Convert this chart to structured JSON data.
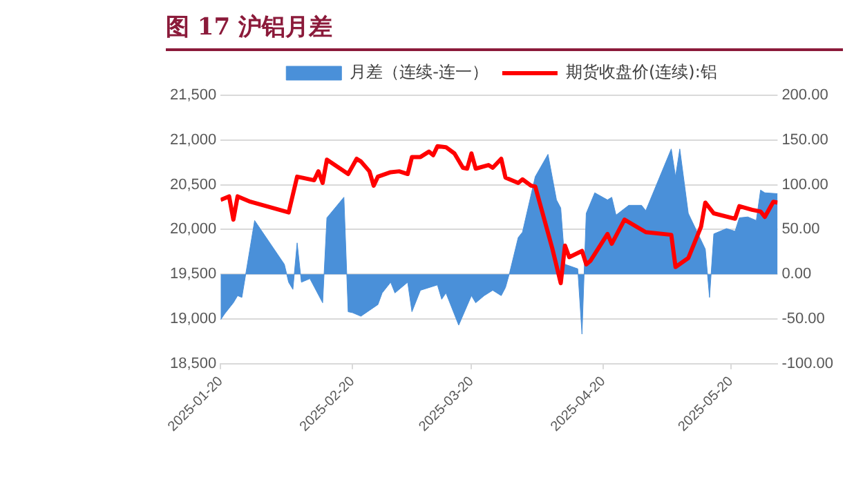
{
  "chart_data": {
    "type": "line",
    "title": "图 17 沪铝月差",
    "legend": "top",
    "grid": "y",
    "marker": "none",
    "xlim": [
      "2025-01-20",
      "2025-05-31"
    ],
    "xticks": [
      "2025-01-20",
      "2025-02-20",
      "2025-03-20",
      "2025-04-20",
      "2025-05-20"
    ],
    "ylim": [
      18500,
      21500
    ],
    "yticks": [
      {
        "value": 18500,
        "label": "18,500"
      },
      {
        "value": 19000,
        "label": "19,000"
      },
      {
        "value": 19500,
        "label": "19,500"
      },
      {
        "value": 20000,
        "label": "20,000"
      },
      {
        "value": 20500,
        "label": "20,500"
      },
      {
        "value": 21000,
        "label": "21,000"
      },
      {
        "value": 21500,
        "label": "21,500"
      }
    ],
    "y2lim": [
      -100,
      200
    ],
    "y2ticks": [
      {
        "value": -100,
        "label": "-100.00"
      },
      {
        "value": -50,
        "label": "-50.00"
      },
      {
        "value": 0,
        "label": "0.00"
      },
      {
        "value": 50,
        "label": "50.00"
      },
      {
        "value": 100,
        "label": "100.00"
      },
      {
        "value": 150,
        "label": "150.00"
      },
      {
        "value": 200,
        "label": "200.00"
      }
    ],
    "series": [
      {
        "name": "月差（连续-连一）",
        "type": "area",
        "axis": "y2",
        "color": "#4a90d9",
        "x": [
          "2025-01-20",
          "2025-01-21",
          "2025-01-23",
          "2025-01-24",
          "2025-01-25",
          "2025-01-28",
          "2025-02-04",
          "2025-02-05",
          "2025-02-06",
          "2025-02-07",
          "2025-02-08",
          "2025-02-10",
          "2025-02-13",
          "2025-02-14",
          "2025-02-18",
          "2025-02-19",
          "2025-02-20",
          "2025-02-22",
          "2025-02-26",
          "2025-02-27",
          "2025-03-01",
          "2025-03-02",
          "2025-03-05",
          "2025-03-06",
          "2025-03-08",
          "2025-03-12",
          "2025-03-13",
          "2025-03-14",
          "2025-03-17",
          "2025-03-20",
          "2025-03-21",
          "2025-03-23",
          "2025-03-25",
          "2025-03-27",
          "2025-03-28",
          "2025-03-29",
          "2025-03-31",
          "2025-04-01",
          "2025-04-04",
          "2025-04-07",
          "2025-04-09",
          "2025-04-10",
          "2025-04-11",
          "2025-04-14",
          "2025-04-15",
          "2025-04-16",
          "2025-04-18",
          "2025-04-21",
          "2025-04-22",
          "2025-04-23",
          "2025-04-26",
          "2025-04-29",
          "2025-04-30",
          "2025-05-06",
          "2025-05-07",
          "2025-05-08",
          "2025-05-10",
          "2025-05-14",
          "2025-05-15",
          "2025-05-16",
          "2025-05-19",
          "2025-05-21",
          "2025-05-22",
          "2025-05-24",
          "2025-05-26",
          "2025-05-27",
          "2025-05-28",
          "2025-05-31"
        ],
        "values": [
          -51,
          -44,
          -32,
          -24,
          -26,
          60,
          11,
          -9,
          -17,
          35,
          -9,
          -5,
          -32,
          63,
          86,
          -42,
          -43,
          -47,
          -34,
          -21,
          -9,
          -21,
          -9,
          -42,
          -18,
          -12,
          -28,
          -21,
          -57,
          -24,
          -32,
          -24,
          -18,
          -24,
          -15,
          2,
          41,
          47,
          109,
          134,
          83,
          74,
          11,
          6,
          -67,
          68,
          91,
          83,
          86,
          66,
          77,
          77,
          71,
          140,
          109,
          140,
          68,
          28,
          -26,
          45,
          51,
          48,
          63,
          64,
          60,
          94,
          91,
          90
        ]
      },
      {
        "name": "期货收盘价(连续):铝",
        "type": "line",
        "axis": "y",
        "color": "#ff0000",
        "x": [
          "2025-01-20",
          "2025-01-22",
          "2025-01-23",
          "2025-01-24",
          "2025-01-27",
          "2025-02-05",
          "2025-02-07",
          "2025-02-11",
          "2025-02-12",
          "2025-02-13",
          "2025-02-14",
          "2025-02-19",
          "2025-02-21",
          "2025-02-22",
          "2025-02-24",
          "2025-02-25",
          "2025-02-26",
          "2025-03-01",
          "2025-03-03",
          "2025-03-05",
          "2025-03-06",
          "2025-03-08",
          "2025-03-10",
          "2025-03-11",
          "2025-03-12",
          "2025-03-14",
          "2025-03-16",
          "2025-03-18",
          "2025-03-19",
          "2025-03-20",
          "2025-03-21",
          "2025-03-24",
          "2025-03-25",
          "2025-03-27",
          "2025-03-28",
          "2025-03-31",
          "2025-04-01",
          "2025-04-03",
          "2025-04-04",
          "2025-04-08",
          "2025-04-10",
          "2025-04-11",
          "2025-04-12",
          "2025-04-15",
          "2025-04-16",
          "2025-04-17",
          "2025-04-21",
          "2025-04-22",
          "2025-04-25",
          "2025-04-30",
          "2025-05-06",
          "2025-05-07",
          "2025-05-10",
          "2025-05-13",
          "2025-05-14",
          "2025-05-16",
          "2025-05-21",
          "2025-05-22",
          "2025-05-25",
          "2025-05-27",
          "2025-05-28",
          "2025-05-30",
          "2025-05-31"
        ],
        "values": [
          20330,
          20370,
          20110,
          20370,
          20310,
          20190,
          20590,
          20550,
          20650,
          20520,
          20780,
          20620,
          20790,
          20760,
          20650,
          20490,
          20590,
          20640,
          20650,
          20620,
          20810,
          20810,
          20870,
          20830,
          20930,
          20920,
          20850,
          20690,
          20680,
          20850,
          20680,
          20720,
          20690,
          20790,
          20580,
          20520,
          20560,
          20490,
          20480,
          19790,
          19400,
          19820,
          19690,
          19760,
          19610,
          19650,
          19950,
          19840,
          20110,
          19970,
          19940,
          19580,
          19680,
          20030,
          20300,
          20180,
          20120,
          20260,
          20220,
          20200,
          20140,
          20310,
          20300
        ]
      }
    ]
  }
}
